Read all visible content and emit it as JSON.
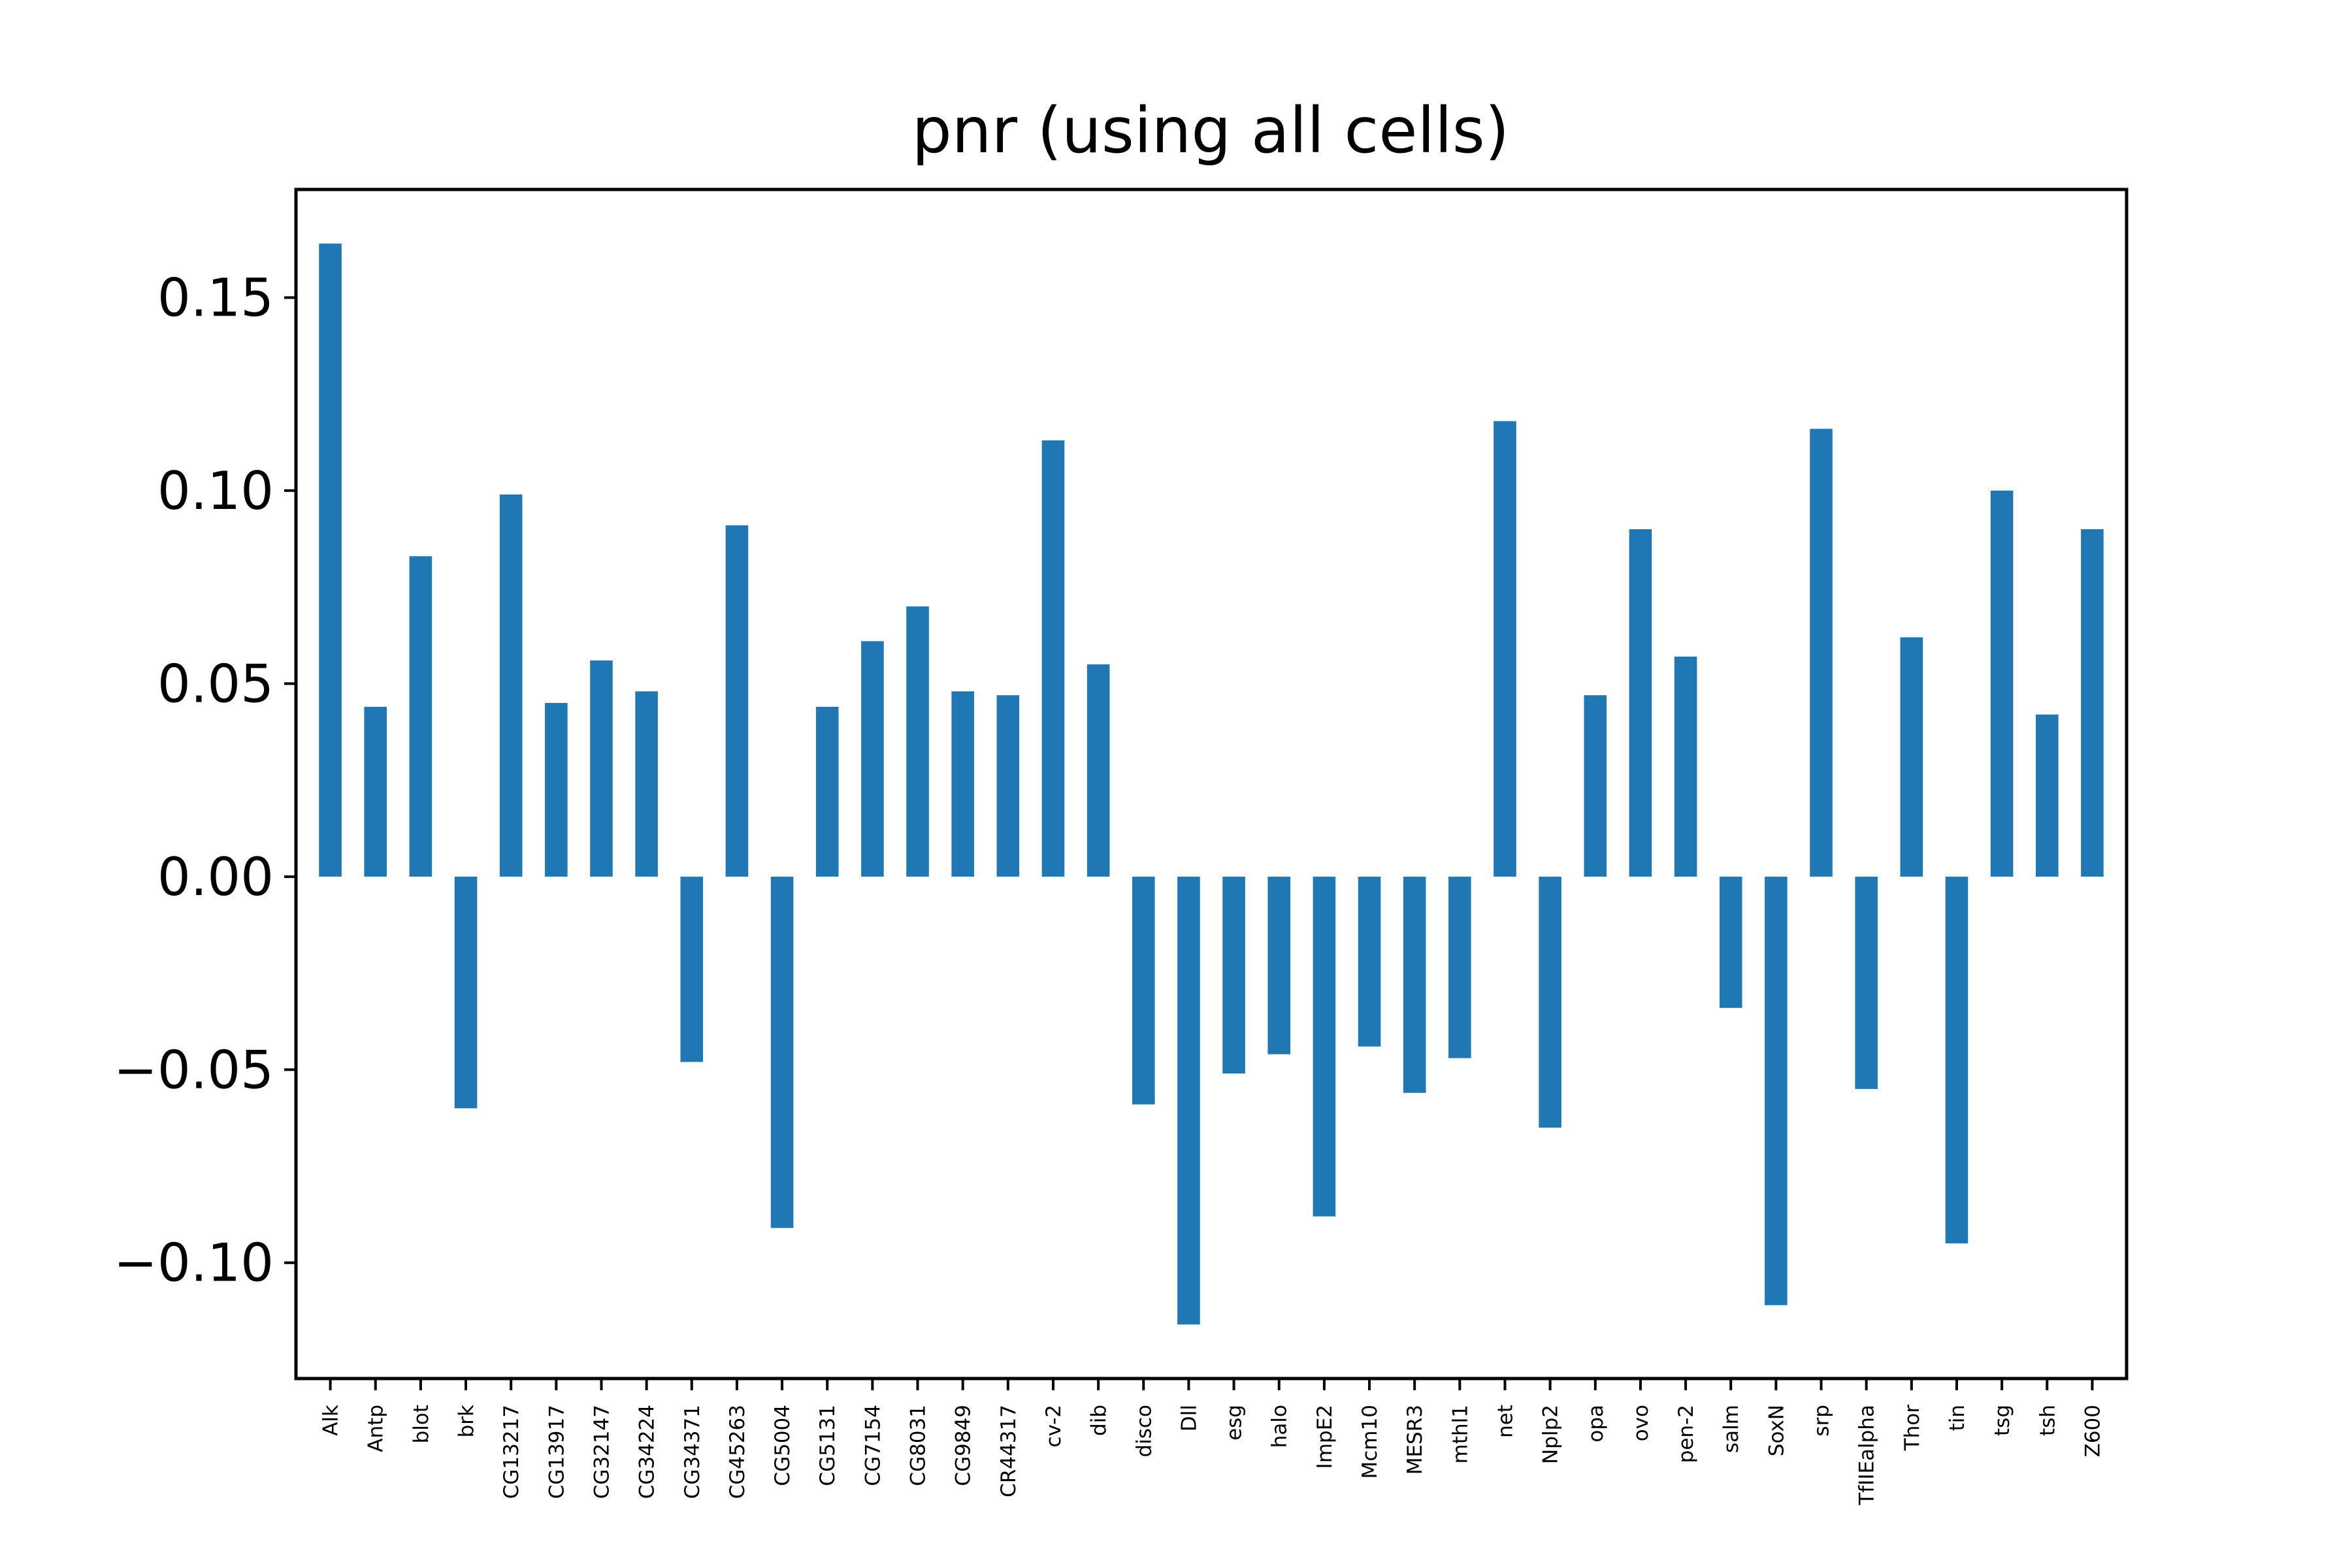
{
  "chart_data": {
    "type": "bar",
    "title": "pnr (using all cells)",
    "xlabel": "",
    "ylabel": "",
    "ylim": [
      -0.13,
      0.178
    ],
    "yticks": [
      -0.1,
      -0.05,
      0.0,
      0.05,
      0.1,
      0.15
    ],
    "ytick_labels": [
      "−0.10",
      "−0.05",
      "0.00",
      "0.05",
      "0.10",
      "0.15"
    ],
    "bar_color": "#1f77b4",
    "grid": false,
    "categories": [
      "Alk",
      "Antp",
      "blot",
      "brk",
      "CG13217",
      "CG13917",
      "CG32147",
      "CG34224",
      "CG34371",
      "CG45263",
      "CG5004",
      "CG5131",
      "CG7154",
      "CG8031",
      "CG9849",
      "CR44317",
      "cv-2",
      "dib",
      "disco",
      "Dll",
      "esg",
      "halo",
      "ImpE2",
      "Mcm10",
      "MESR3",
      "mthl1",
      "net",
      "Nplp2",
      "opa",
      "ovo",
      "pen-2",
      "salm",
      "SoxN",
      "srp",
      "TfIIEalpha",
      "Thor",
      "tin",
      "tsg",
      "tsh",
      "Z600"
    ],
    "values": [
      0.164,
      0.044,
      0.083,
      -0.06,
      0.099,
      0.045,
      0.056,
      0.048,
      -0.048,
      0.091,
      -0.091,
      0.044,
      0.061,
      0.07,
      0.048,
      0.047,
      0.113,
      0.055,
      -0.059,
      -0.116,
      -0.051,
      -0.046,
      -0.088,
      -0.044,
      -0.056,
      -0.047,
      0.118,
      -0.065,
      0.047,
      0.09,
      0.057,
      -0.034,
      -0.111,
      0.116,
      -0.055,
      0.062,
      -0.095,
      0.1,
      0.042,
      0.09
    ]
  }
}
